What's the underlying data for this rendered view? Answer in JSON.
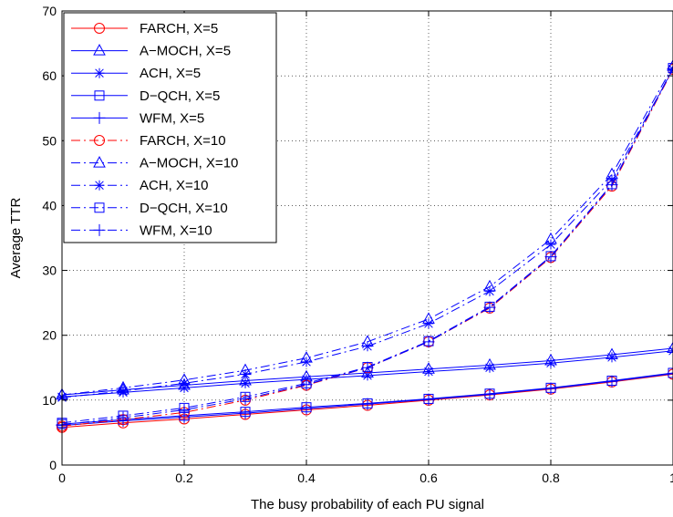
{
  "chart_data": {
    "type": "line",
    "title": "",
    "xlabel": "The busy probability of each PU signal",
    "ylabel": "Average TTR",
    "xlim": [
      0,
      1
    ],
    "ylim": [
      0,
      70
    ],
    "xticks": [
      0,
      0.2,
      0.4,
      0.6,
      0.8,
      1
    ],
    "xtick_labels": [
      "0",
      "0.2",
      "0.4",
      "0.6",
      "0.8",
      "1"
    ],
    "yticks": [
      0,
      10,
      20,
      30,
      40,
      50,
      60,
      70
    ],
    "ytick_labels": [
      "0",
      "10",
      "20",
      "30",
      "40",
      "50",
      "60",
      "70"
    ],
    "grid": true,
    "legend_position": "top-left",
    "x": [
      0,
      0.1,
      0.2,
      0.3,
      0.4,
      0.5,
      0.6,
      0.7,
      0.8,
      0.9,
      1.0
    ],
    "series": [
      {
        "name": "FARCH, X=5",
        "color": "#ff0000",
        "dash": "solid",
        "marker": "circle",
        "values": [
          5.8,
          6.5,
          7.1,
          7.8,
          8.5,
          9.2,
          10.0,
          10.8,
          11.7,
          12.8,
          14.0
        ]
      },
      {
        "name": "A−MOCH, X=5",
        "color": "#0000ff",
        "dash": "solid",
        "marker": "triangle",
        "values": [
          10.8,
          11.6,
          12.3,
          13.0,
          13.6,
          14.2,
          14.8,
          15.4,
          16.1,
          17.0,
          18.0
        ]
      },
      {
        "name": "ACH, X=5",
        "color": "#0000ff",
        "dash": "solid",
        "marker": "star",
        "values": [
          10.5,
          11.2,
          11.9,
          12.6,
          13.2,
          13.8,
          14.4,
          15.0,
          15.7,
          16.6,
          17.6
        ]
      },
      {
        "name": "D−QCH, X=5",
        "color": "#0000ff",
        "dash": "solid",
        "marker": "square",
        "values": [
          6.3,
          7.0,
          7.6,
          8.2,
          8.9,
          9.5,
          10.2,
          11.0,
          11.9,
          13.0,
          14.2
        ]
      },
      {
        "name": "WFM, X=5",
        "color": "#0000ff",
        "dash": "solid",
        "marker": "plus",
        "values": [
          6.1,
          6.8,
          7.4,
          8.0,
          8.7,
          9.4,
          10.1,
          10.9,
          11.8,
          12.9,
          14.1
        ]
      },
      {
        "name": "FARCH, X=10",
        "color": "#ff0000",
        "dash": "dashdot",
        "marker": "circle",
        "values": [
          6.0,
          7.0,
          8.1,
          10.0,
          12.3,
          15.0,
          19.0,
          24.2,
          32.0,
          43.0,
          61.0
        ]
      },
      {
        "name": "A−MOCH, X=10",
        "color": "#0000ff",
        "dash": "dashdot",
        "marker": "triangle",
        "values": [
          10.8,
          11.9,
          13.1,
          14.6,
          16.5,
          19.0,
          22.5,
          27.5,
          34.8,
          44.8,
          61.5
        ]
      },
      {
        "name": "ACH, X=10",
        "color": "#0000ff",
        "dash": "dashdot",
        "marker": "star",
        "values": [
          10.4,
          11.4,
          12.6,
          14.0,
          15.9,
          18.3,
          21.8,
          26.8,
          34.0,
          44.0,
          61.0
        ]
      },
      {
        "name": "D−QCH, X=10",
        "color": "#0000ff",
        "dash": "dashdot",
        "marker": "square",
        "values": [
          6.5,
          7.6,
          8.8,
          10.5,
          12.6,
          15.1,
          19.1,
          24.4,
          32.2,
          43.3,
          61.2
        ]
      },
      {
        "name": "WFM, X=10",
        "color": "#0000ff",
        "dash": "dashdot",
        "marker": "plus",
        "values": [
          6.2,
          7.3,
          8.5,
          10.2,
          12.4,
          15.0,
          19.0,
          24.3,
          32.1,
          43.2,
          61.1
        ]
      }
    ]
  }
}
